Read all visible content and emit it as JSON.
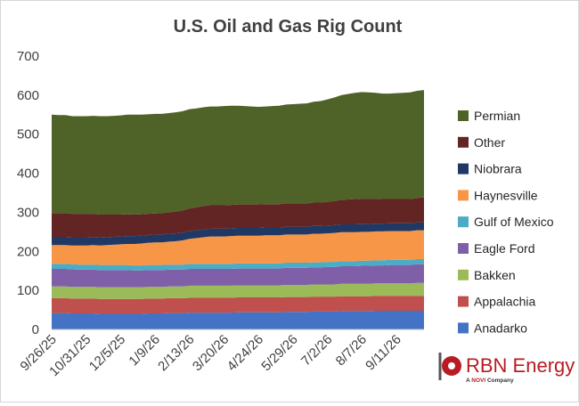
{
  "chart_data": {
    "type": "area",
    "stacked": true,
    "title": "U.S. Oil and Gas Rig Count",
    "ylim": [
      0,
      700
    ],
    "yticks": [
      0,
      100,
      200,
      300,
      400,
      500,
      600,
      700
    ],
    "x_tick_labels": [
      "9/26/25",
      "10/31/25",
      "12/5/25",
      "1/9/26",
      "2/13/26",
      "3/20/26",
      "4/24/26",
      "5/29/26",
      "7/2/26",
      "8/7/26",
      "9/11/26"
    ],
    "x_tick_index": [
      0,
      5,
      10,
      15,
      20,
      25,
      30,
      35,
      40,
      45,
      50
    ],
    "x_count": 55,
    "grid": false,
    "legend_position": "right",
    "colors": {
      "Anadarko": "#4472c4",
      "Appalachia": "#c0504d",
      "Bakken": "#9bbb59",
      "Eagle Ford": "#7f60a8",
      "Gulf of Mexico": "#4bacc6",
      "Haynesville": "#f79646",
      "Niobrara": "#1f3864",
      "Other": "#632523",
      "Permian": "#4f6228"
    },
    "series": [
      {
        "name": "Anadarko",
        "values": [
          42,
          42,
          42,
          41,
          41,
          41,
          41,
          40,
          40,
          40,
          40,
          40,
          40,
          40,
          41,
          41,
          41,
          42,
          42,
          42,
          43,
          43,
          43,
          43,
          43,
          43,
          43,
          44,
          44,
          44,
          44,
          44,
          44,
          44,
          45,
          45,
          45,
          45,
          46,
          46,
          46,
          46,
          47,
          47,
          47,
          47,
          47,
          48,
          48,
          48,
          48,
          48,
          48,
          48,
          48
        ]
      },
      {
        "name": "Appalachia",
        "values": [
          38,
          38,
          38,
          38,
          38,
          38,
          38,
          38,
          38,
          38,
          38,
          38,
          38,
          38,
          38,
          38,
          38,
          38,
          38,
          38,
          38,
          38,
          38,
          38,
          38,
          38,
          38,
          38,
          38,
          38,
          38,
          38,
          38,
          38,
          38,
          38,
          38,
          38,
          38,
          38,
          38,
          38,
          38,
          38,
          38,
          38,
          38,
          38,
          38,
          38,
          38,
          38,
          38,
          38,
          38
        ]
      },
      {
        "name": "Bakken",
        "values": [
          30,
          30,
          30,
          30,
          30,
          30,
          30,
          30,
          30,
          30,
          30,
          30,
          30,
          30,
          30,
          30,
          30,
          30,
          30,
          30,
          31,
          31,
          31,
          31,
          31,
          31,
          31,
          31,
          31,
          31,
          31,
          31,
          31,
          31,
          31,
          31,
          31,
          31,
          31,
          31,
          31,
          31,
          32,
          32,
          32,
          32,
          32,
          32,
          32,
          32,
          32,
          32,
          32,
          33,
          33
        ]
      },
      {
        "name": "Eagle Ford",
        "values": [
          45,
          45,
          45,
          45,
          44,
          44,
          44,
          44,
          44,
          44,
          44,
          44,
          43,
          43,
          43,
          43,
          43,
          43,
          43,
          43,
          43,
          43,
          43,
          43,
          43,
          43,
          43,
          43,
          43,
          43,
          43,
          43,
          43,
          43,
          44,
          44,
          44,
          44,
          44,
          44,
          45,
          45,
          45,
          45,
          45,
          46,
          46,
          46,
          46,
          47,
          47,
          47,
          47,
          48,
          48
        ]
      },
      {
        "name": "Gulf of Mexico",
        "values": [
          13,
          13,
          13,
          13,
          13,
          13,
          13,
          13,
          13,
          13,
          13,
          13,
          13,
          13,
          13,
          13,
          13,
          13,
          13,
          13,
          13,
          13,
          13,
          13,
          13,
          13,
          13,
          13,
          13,
          13,
          13,
          13,
          13,
          13,
          13,
          13,
          13,
          13,
          13,
          13,
          13,
          13,
          13,
          13,
          13,
          13,
          13,
          13,
          13,
          13,
          13,
          13,
          13,
          13,
          13
        ]
      },
      {
        "name": "Haynesville",
        "values": [
          48,
          48,
          48,
          48,
          49,
          49,
          50,
          50,
          51,
          52,
          53,
          54,
          55,
          56,
          57,
          58,
          58,
          59,
          60,
          62,
          64,
          66,
          68,
          70,
          70,
          70,
          71,
          71,
          71,
          71,
          71,
          72,
          72,
          72,
          72,
          72,
          72,
          72,
          73,
          73,
          73,
          74,
          74,
          74,
          74,
          74,
          74,
          74,
          74,
          74,
          74,
          74,
          74,
          74,
          74
        ]
      },
      {
        "name": "Niobrara",
        "values": [
          20,
          20,
          20,
          20,
          20,
          20,
          20,
          20,
          20,
          20,
          20,
          20,
          20,
          20,
          20,
          20,
          20,
          20,
          20,
          20,
          20,
          20,
          20,
          20,
          20,
          20,
          20,
          20,
          20,
          20,
          20,
          20,
          20,
          20,
          20,
          20,
          20,
          20,
          20,
          20,
          20,
          20,
          20,
          20,
          20,
          20,
          20,
          20,
          20,
          20,
          20,
          20,
          20,
          20,
          20
        ]
      },
      {
        "name": "Other",
        "values": [
          62,
          62,
          62,
          61,
          61,
          61,
          60,
          59,
          58,
          57,
          56,
          56,
          55,
          55,
          54,
          54,
          55,
          55,
          56,
          57,
          58,
          59,
          60,
          60,
          60,
          60,
          60,
          60,
          60,
          60,
          60,
          60,
          60,
          60,
          60,
          60,
          60,
          60,
          60,
          60,
          61,
          62,
          63,
          64,
          65,
          65,
          65,
          64,
          63,
          62,
          62,
          62,
          62,
          63,
          64
        ]
      },
      {
        "name": "Permian",
        "values": [
          252,
          251,
          251,
          250,
          250,
          250,
          251,
          252,
          252,
          253,
          254,
          255,
          256,
          255,
          255,
          255,
          254,
          254,
          254,
          254,
          254,
          253,
          253,
          253,
          253,
          254,
          254,
          253,
          252,
          251,
          250,
          250,
          251,
          252,
          253,
          254,
          255,
          256,
          258,
          260,
          262,
          265,
          268,
          270,
          272,
          273,
          272,
          271,
          270,
          270,
          271,
          272,
          273,
          274,
          275
        ]
      }
    ]
  },
  "branding": {
    "name": "RBN Energy",
    "tagline_prefix": "A",
    "tagline_brand": "NOVI",
    "tagline_suffix": "Company"
  }
}
